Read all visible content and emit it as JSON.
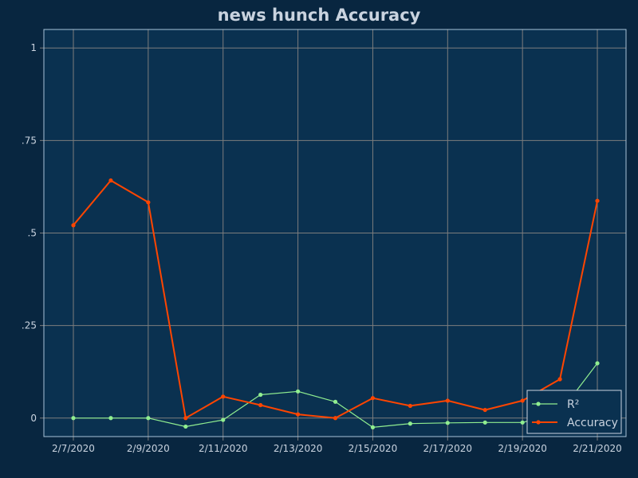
{
  "chart_data": {
    "type": "line",
    "title": "news hunch Accuracy",
    "xlabel": "",
    "ylabel": "",
    "x": [
      "2/7/2020",
      "2/8/2020",
      "2/9/2020",
      "2/10/2020",
      "2/11/2020",
      "2/12/2020",
      "2/13/2020",
      "2/14/2020",
      "2/15/2020",
      "2/16/2020",
      "2/17/2020",
      "2/18/2020",
      "2/19/2020",
      "2/20/2020",
      "2/21/2020"
    ],
    "x_tick_labels": [
      "2/7/2020",
      "2/9/2020",
      "2/11/2020",
      "2/13/2020",
      "2/15/2020",
      "2/17/2020",
      "2/19/2020",
      "2/21/2020"
    ],
    "y_ticks": [
      0,
      0.25,
      0.5,
      0.75,
      1
    ],
    "y_tick_labels": [
      "0",
      ".25",
      ".5",
      ".75",
      "1"
    ],
    "ylim": [
      -0.05,
      1.05
    ],
    "grid": true,
    "legend_position": "bottom-right",
    "series": [
      {
        "name": "R²",
        "color": "#90ee90",
        "values": [
          0,
          0,
          0,
          -0.023,
          -0.005,
          0.063,
          0.072,
          0.044,
          -0.025,
          -0.015,
          -0.013,
          -0.012,
          -0.012,
          0.015,
          0.148
        ]
      },
      {
        "name": "Accuracy",
        "color": "#ff4500",
        "values": [
          0.521,
          0.642,
          0.583,
          0,
          0.058,
          0.035,
          0.01,
          0,
          0.054,
          0.033,
          0.047,
          0.022,
          0.047,
          0.105,
          0.587
        ]
      }
    ],
    "colors": {
      "background": "#082640",
      "plot_background": "#0a3150",
      "grid": "#7d7d7d",
      "frame": "#a8c3d8",
      "text": "#c9d3df"
    }
  }
}
